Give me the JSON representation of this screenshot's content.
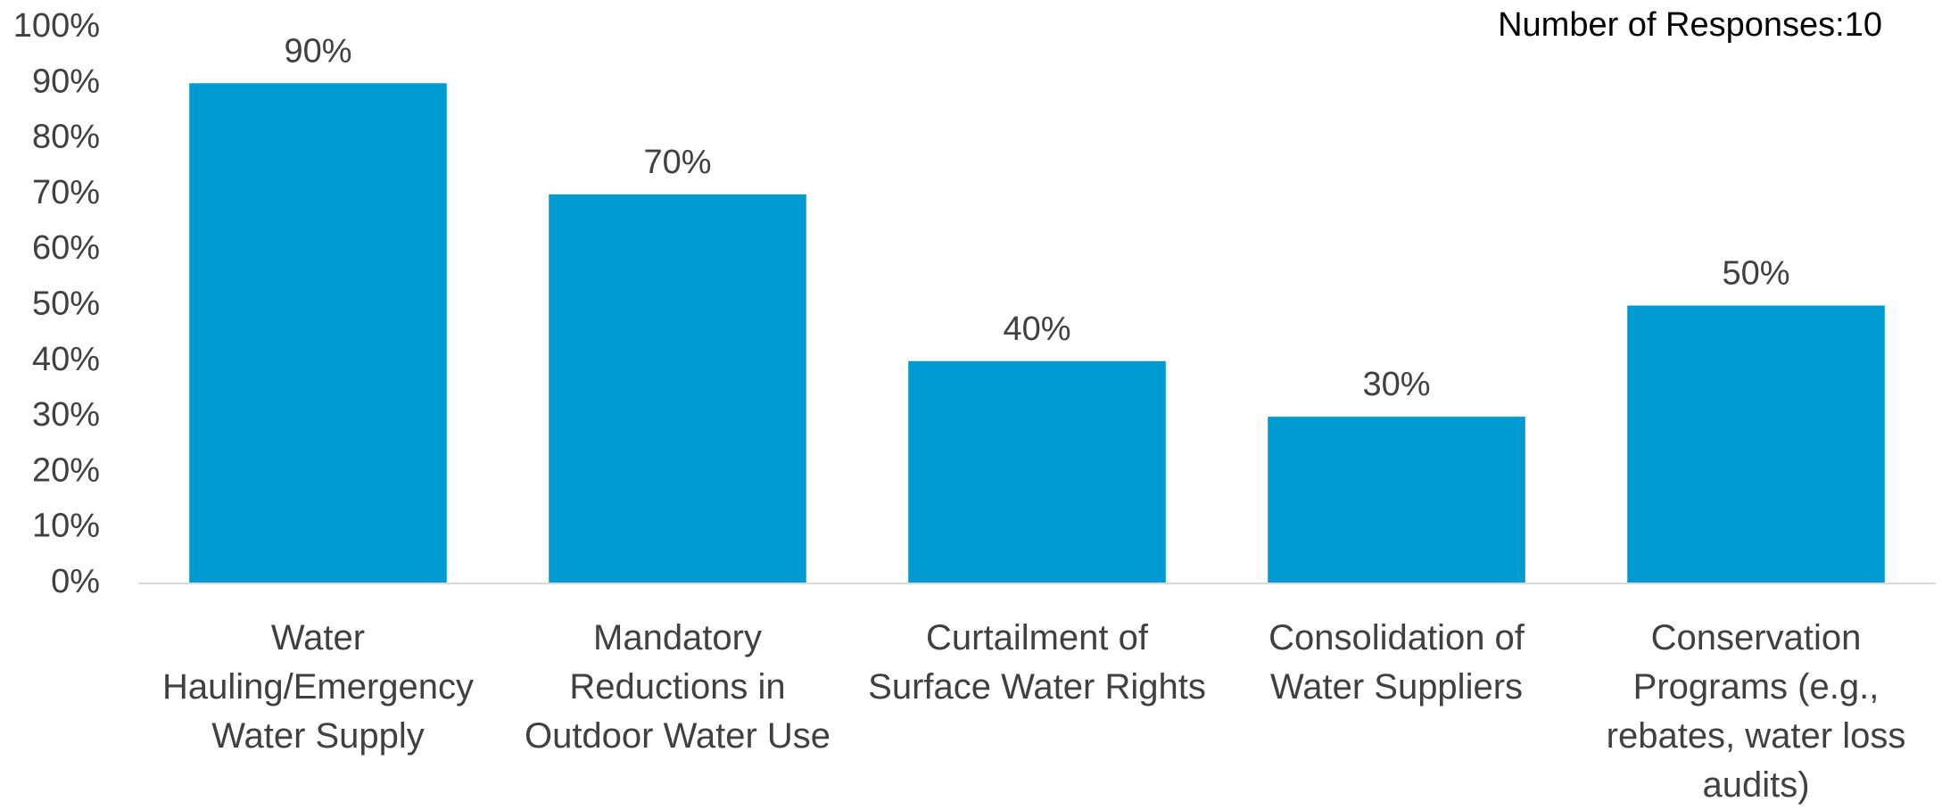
{
  "chart_data": {
    "type": "bar",
    "annotation": "Number of Responses:10",
    "categories": [
      "Water Hauling/Emergency Water Supply",
      "Mandatory Reductions in Outdoor Water Use",
      "Curtailment of Surface Water Rights",
      "Consolidation of Water Suppliers",
      "Conservation Programs (e.g., rebates, water loss audits)"
    ],
    "values": [
      90,
      70,
      40,
      30,
      50
    ],
    "value_labels": [
      "90%",
      "70%",
      "40%",
      "30%",
      "50%"
    ],
    "color": "#009ad3",
    "ylim": [
      0,
      100
    ],
    "yticks": [
      {
        "value": 0,
        "label": "0%"
      },
      {
        "value": 10,
        "label": "10%"
      },
      {
        "value": 20,
        "label": "20%"
      },
      {
        "value": 30,
        "label": "30%"
      },
      {
        "value": 40,
        "label": "40%"
      },
      {
        "value": 50,
        "label": "50%"
      },
      {
        "value": 60,
        "label": "60%"
      },
      {
        "value": 70,
        "label": "70%"
      },
      {
        "value": 80,
        "label": "80%"
      },
      {
        "value": 90,
        "label": "90%"
      },
      {
        "value": 100,
        "label": "100%"
      }
    ],
    "grid": false
  }
}
